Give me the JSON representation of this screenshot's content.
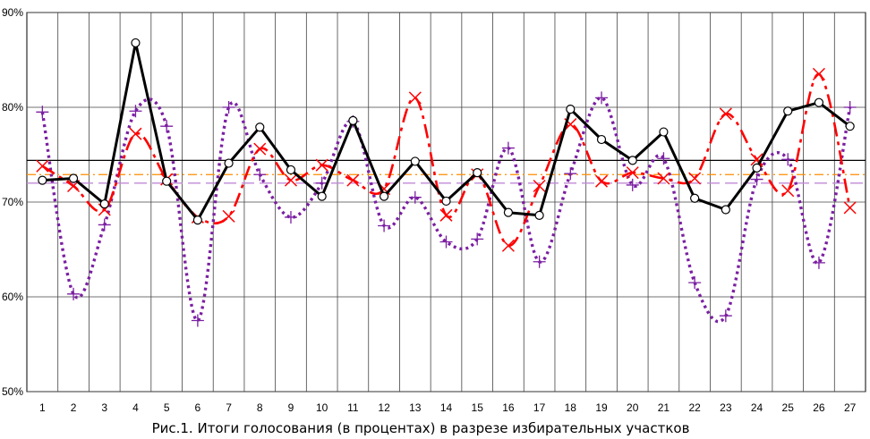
{
  "chart_data": {
    "type": "line",
    "title": "",
    "xlabel": "",
    "ylabel": "",
    "caption": "Рис.1. Итоги голосования (в процентах) в разрезе избирательных участков",
    "ylim": [
      50,
      90
    ],
    "y_ticks": [
      "50%",
      "60%",
      "70%",
      "80%",
      "90%"
    ],
    "grid": true,
    "legend": "none",
    "categories": [
      "1",
      "2",
      "3",
      "4",
      "5",
      "6",
      "7",
      "8",
      "9",
      "10",
      "11",
      "12",
      "13",
      "14",
      "15",
      "16",
      "17",
      "18",
      "19",
      "20",
      "21",
      "22",
      "23",
      "24",
      "25",
      "26",
      "27"
    ],
    "series": [
      {
        "color": "#000000",
        "style": "solid",
        "marker": "circle",
        "values": [
          72.3,
          72.5,
          69.8,
          86.8,
          72.2,
          68.1,
          74.1,
          77.9,
          73.4,
          70.6,
          78.6,
          70.6,
          74.3,
          70.1,
          73.1,
          68.9,
          68.6,
          79.8,
          76.6,
          74.4,
          77.4,
          70.4,
          69.2,
          73.6,
          79.6,
          80.5,
          78.0
        ]
      },
      {
        "color": "#ff0000",
        "style": "dashed",
        "marker": "x",
        "values": [
          73.8,
          71.7,
          69.2,
          77.2,
          72.4,
          68.4,
          68.5,
          75.6,
          72.3,
          73.9,
          72.3,
          71.4,
          81.0,
          68.6,
          72.9,
          65.4,
          71.7,
          78.2,
          72.2,
          73.1,
          72.5,
          72.5,
          79.3,
          74.5,
          71.2,
          83.5,
          69.4
        ]
      },
      {
        "color": "#7b1fa2",
        "style": "dotted",
        "marker": "plus",
        "values": [
          79.5,
          60.3,
          67.6,
          79.6,
          78.0,
          57.5,
          80.0,
          72.9,
          68.4,
          72.0,
          78.5,
          67.5,
          70.5,
          65.8,
          66.1,
          75.7,
          63.7,
          73.0,
          81.0,
          71.8,
          74.6,
          61.5,
          58.0,
          72.4,
          74.5,
          63.6,
          80.0
        ]
      }
    ],
    "reference_lines": [
      {
        "value": 74.4,
        "color": "#000000",
        "style": "solid"
      },
      {
        "value": 72.9,
        "color": "#ff8c00",
        "style": "dashdot"
      },
      {
        "value": 72.0,
        "color": "#c08ad6",
        "style": "dashed"
      }
    ]
  }
}
